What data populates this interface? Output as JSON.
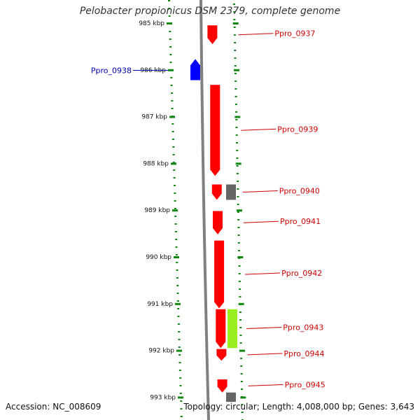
{
  "title": "Pelobacter propionicus DSM 2379, complete genome",
  "footer": {
    "accession": "Accession: NC_008609",
    "topology": "Topology: circular; Length: 4,008,000 bp; Genes: 3,643"
  },
  "colors": {
    "forward_gene": "#ff0000",
    "reverse_gene": "#0000ff",
    "label_forward": "#cc0000",
    "label_reverse": "#0000aa",
    "grey_feature": "#666666",
    "green_feature": "#99ee22",
    "ruler_dots": "#118811",
    "backbone": "#808080"
  },
  "ticks": [
    {
      "label": "985 kbp",
      "kb": 985
    },
    {
      "label": "986 kbp",
      "kb": 986
    },
    {
      "label": "987 kbp",
      "kb": 987
    },
    {
      "label": "988 kbp",
      "kb": 988
    },
    {
      "label": "989 kbp",
      "kb": 989
    },
    {
      "label": "990 kbp",
      "kb": 990
    },
    {
      "label": "991 kbp",
      "kb": 991
    },
    {
      "label": "992 kbp",
      "kb": 992
    },
    {
      "label": "993 kbp",
      "kb": 993
    }
  ],
  "genes": [
    {
      "name": "Ppro_0937",
      "strand": "forward",
      "start_kb": 985.05,
      "end_kb": 985.45
    },
    {
      "name": "Ppro_0938",
      "strand": "reverse",
      "start_kb": 985.77,
      "end_kb": 986.22
    },
    {
      "name": "Ppro_0939",
      "strand": "forward",
      "start_kb": 986.32,
      "end_kb": 988.27
    },
    {
      "name": "Ppro_0940",
      "strand": "forward",
      "start_kb": 988.45,
      "end_kb": 988.78
    },
    {
      "name": "Ppro_0941",
      "strand": "forward",
      "start_kb": 989.02,
      "end_kb": 989.52
    },
    {
      "name": "Ppro_0942",
      "strand": "forward",
      "start_kb": 989.65,
      "end_kb": 991.1
    },
    {
      "name": "Ppro_0943",
      "strand": "forward",
      "start_kb": 991.12,
      "end_kb": 991.95
    },
    {
      "name": "Ppro_0944",
      "strand": "forward",
      "start_kb": 991.97,
      "end_kb": 992.22
    },
    {
      "name": "Ppro_0945",
      "strand": "forward",
      "start_kb": 992.62,
      "end_kb": 992.9
    }
  ],
  "other_features": [
    {
      "kind": "grey",
      "start_kb": 988.45,
      "end_kb": 988.78
    },
    {
      "kind": "green",
      "start_kb": 991.12,
      "end_kb": 991.95
    },
    {
      "kind": "grey",
      "start_kb": 992.9,
      "end_kb": 993.1
    }
  ]
}
